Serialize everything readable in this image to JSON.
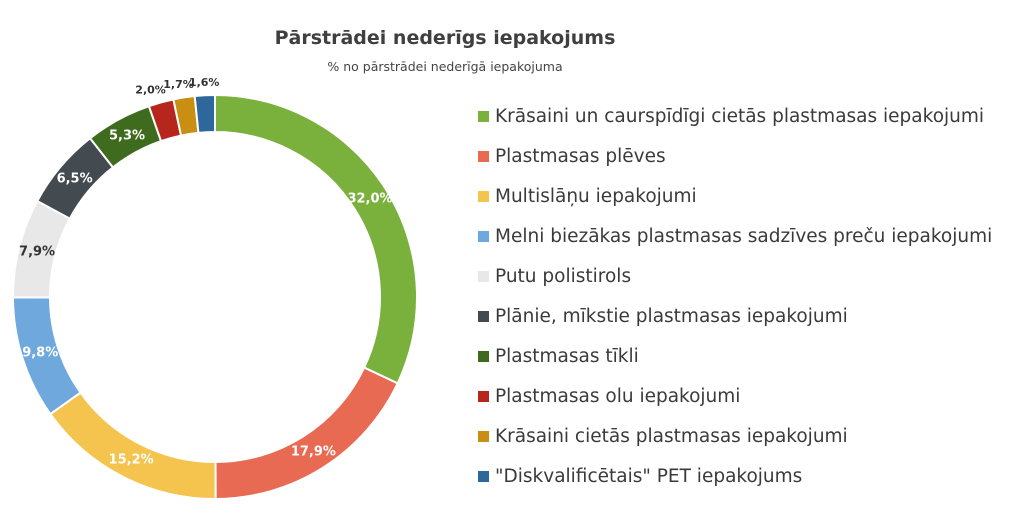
{
  "chart_data": {
    "type": "pie",
    "title": "Pārstrādei nederīgs iepakojums",
    "subtitle": "% no pārstrādei nederīgā iepakojuma",
    "legend_position": "right",
    "categories": [
      "Krāsaini un caurspīdīgi cietās plastmasas iepakojumi",
      "Plastmasas plēves",
      "Multislāņu iepakojumi",
      "Melni biezākas plastmasas sadzīves preču iepakojumi",
      "Putu polistirols",
      "Plānie, mīkstie plastmasas iepakojumi",
      "Plastmasas tīkli",
      "Plastmasas olu iepakojumi",
      "Krāsaini cietās plastmasas iepakojumi",
      "\"Diskvalificētais\" PET iepakojums"
    ],
    "values": [
      32.0,
      17.9,
      15.2,
      9.8,
      7.9,
      6.5,
      5.3,
      2.0,
      1.7,
      1.6
    ],
    "value_labels": [
      "32,0%",
      "17,9%",
      "15,2%",
      "9,8%",
      "7,9%",
      "6,5%",
      "5,3%",
      "2,0%",
      "1,7%",
      "1,6%"
    ],
    "colors": [
      "#7ab13d",
      "#e86a52",
      "#f5c44e",
      "#6fa8dc",
      "#e8e8e8",
      "#434a50",
      "#3e6b1e",
      "#b7261d",
      "#c98f12",
      "#2e6799"
    ]
  }
}
